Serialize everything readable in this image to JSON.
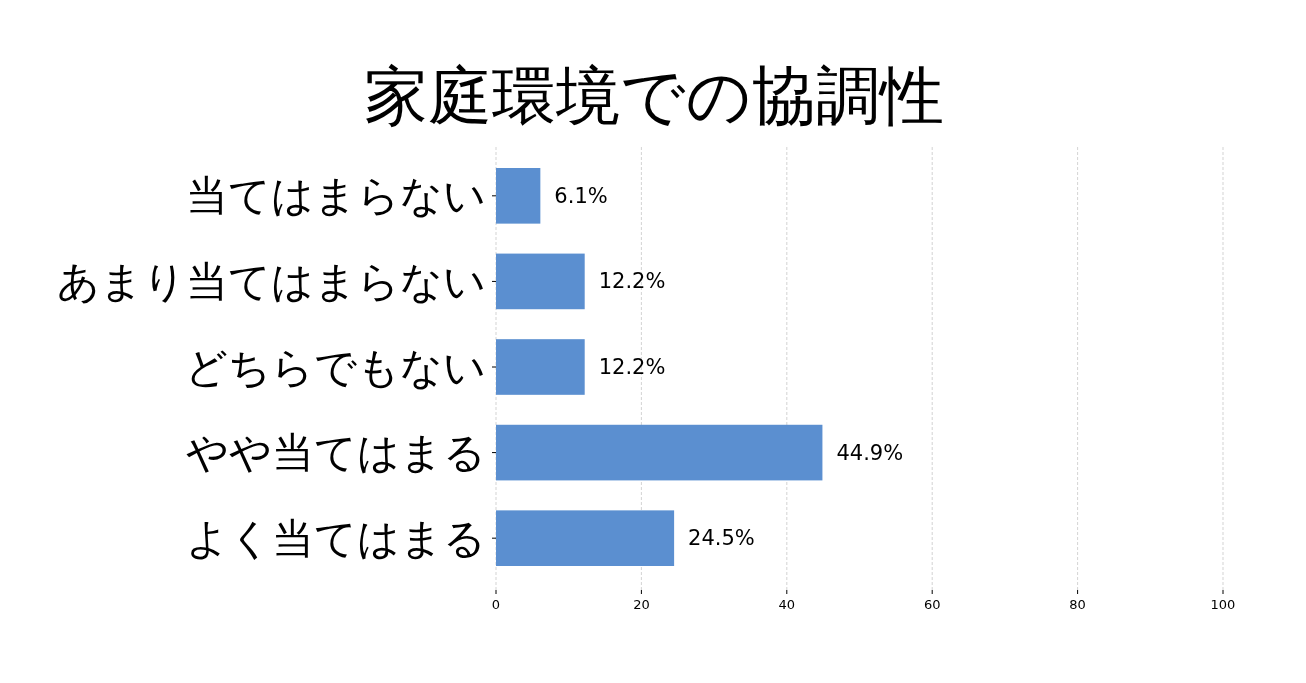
{
  "chart_data": {
    "type": "bar",
    "orientation": "horizontal",
    "title": "家庭環境での協調性",
    "categories": [
      "当てはまらない",
      "あまり当てはまらない",
      "どちらでもない",
      "やや当てはまる",
      "よく当てはまる"
    ],
    "values": [
      6.1,
      12.2,
      12.2,
      44.9,
      24.5
    ],
    "value_labels": [
      "6.1%",
      "12.2%",
      "12.2%",
      "44.9%",
      "24.5%"
    ],
    "color": "#5b8fd0",
    "xlim": [
      0,
      100
    ],
    "xticks": [
      0,
      20,
      40,
      60,
      80,
      100
    ],
    "grid": "x"
  }
}
